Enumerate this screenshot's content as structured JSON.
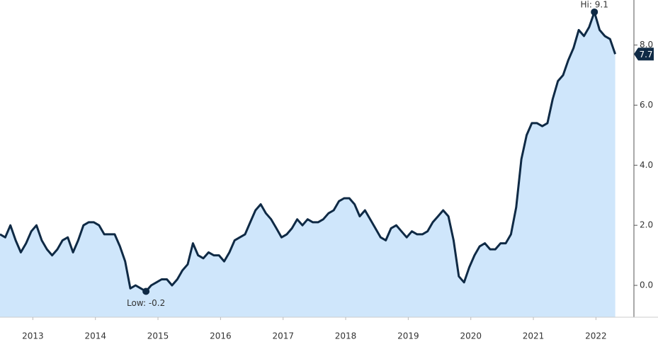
{
  "chart_data": {
    "type": "area",
    "series": [
      {
        "color": "#0f2a45",
        "fill": "#cfe6fb",
        "values": [
          1.7,
          1.6,
          2.0,
          1.5,
          1.1,
          1.4,
          1.8,
          2.0,
          1.5,
          1.2,
          1.0,
          1.2,
          1.5,
          1.6,
          1.1,
          1.5,
          2.0,
          2.1,
          2.1,
          2.0,
          1.7,
          1.7,
          1.7,
          1.3,
          0.8,
          -0.1,
          0.0,
          -0.1,
          -0.2,
          0.0,
          0.1,
          0.2,
          0.2,
          0.0,
          0.2,
          0.5,
          0.7,
          1.4,
          1.0,
          0.9,
          1.1,
          1.0,
          1.0,
          0.8,
          1.1,
          1.5,
          1.6,
          1.7,
          2.1,
          2.5,
          2.7,
          2.4,
          2.2,
          1.9,
          1.6,
          1.7,
          1.9,
          2.2,
          2.0,
          2.2,
          2.1,
          2.1,
          2.2,
          2.4,
          2.5,
          2.8,
          2.9,
          2.9,
          2.7,
          2.3,
          2.5,
          2.2,
          1.9,
          1.6,
          1.5,
          1.9,
          2.0,
          1.8,
          1.6,
          1.8,
          1.7,
          1.7,
          1.8,
          2.1,
          2.3,
          2.5,
          2.3,
          1.5,
          0.3,
          0.1,
          0.6,
          1.0,
          1.3,
          1.4,
          1.2,
          1.2,
          1.4,
          1.4,
          1.7,
          2.6,
          4.2,
          5.0,
          5.4,
          5.4,
          5.3,
          5.4,
          6.2,
          6.8,
          7.0,
          7.5,
          7.9,
          8.5,
          8.3,
          8.6,
          9.1,
          8.5,
          8.3,
          8.2,
          7.7
        ]
      }
    ],
    "xlim": [
      0,
      126.2
    ],
    "xticks": [
      {
        "value": 6.3,
        "label": "2013"
      },
      {
        "value": 18.3,
        "label": "2014"
      },
      {
        "value": 30.3,
        "label": "2015"
      },
      {
        "value": 42.3,
        "label": "2016"
      },
      {
        "value": 54.3,
        "label": "2017"
      },
      {
        "value": 66.3,
        "label": "2018"
      },
      {
        "value": 78.3,
        "label": "2019"
      },
      {
        "value": 90.3,
        "label": "2020"
      },
      {
        "value": 102.3,
        "label": "2021"
      },
      {
        "value": 114.3,
        "label": "2022"
      }
    ],
    "ylim": [
      -1.06,
      9.5
    ],
    "yticks": [
      {
        "value": 0,
        "label": "0.0"
      },
      {
        "value": 2,
        "label": "2.0"
      },
      {
        "value": 4,
        "label": "4.0"
      },
      {
        "value": 6,
        "label": "6.0"
      },
      {
        "value": 8,
        "label": "8.0"
      }
    ],
    "annotations": {
      "high": "Hi: 9.1",
      "low": "Low: -0.2",
      "last": "7.7"
    }
  }
}
